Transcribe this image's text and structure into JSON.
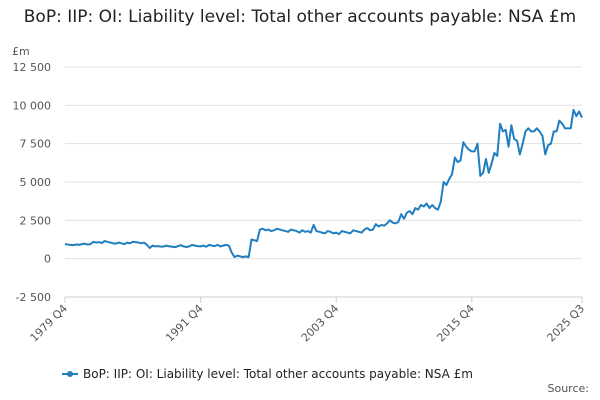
{
  "chart_data": {
    "type": "line",
    "title": "BoP: IIP: OI: Liability level: Total other accounts payable: NSA £m",
    "y_axis_label": "£m",
    "source": "Source:",
    "categories": [
      "1979 Q4",
      null,
      null,
      null,
      null,
      null,
      null,
      null,
      null,
      null,
      null,
      null,
      null,
      null,
      null,
      null,
      null,
      null,
      null,
      null,
      null,
      null,
      null,
      null,
      null,
      null,
      null,
      null,
      null,
      null,
      null,
      null,
      null,
      null,
      null,
      null,
      null,
      null,
      null,
      null,
      null,
      null,
      null,
      null,
      null,
      null,
      null,
      null,
      "1991 Q4",
      null,
      null,
      null,
      null,
      null,
      null,
      null,
      null,
      null,
      null,
      null,
      null,
      null,
      null,
      null,
      null,
      null,
      null,
      null,
      null,
      null,
      null,
      null,
      null,
      null,
      null,
      null,
      null,
      null,
      null,
      null,
      null,
      null,
      null,
      null,
      null,
      null,
      null,
      null,
      null,
      null,
      null,
      null,
      null,
      null,
      null,
      null,
      "2003 Q4",
      null,
      null,
      null,
      null,
      null,
      null,
      null,
      null,
      null,
      null,
      null,
      null,
      null,
      null,
      null,
      null,
      null,
      null,
      null,
      null,
      null,
      null,
      null,
      null,
      null,
      null,
      null,
      null,
      null,
      null,
      null,
      null,
      null,
      null,
      null,
      null,
      null,
      null,
      null,
      null,
      null,
      null,
      null,
      null,
      null,
      null,
      null,
      "2015 Q4",
      null,
      null,
      null,
      null,
      null,
      null,
      null,
      null,
      null,
      null,
      null,
      null,
      null,
      null,
      null,
      null,
      null,
      null,
      null,
      null,
      null,
      null,
      null,
      null,
      null,
      null,
      null,
      null,
      null,
      null,
      null,
      null,
      null,
      null,
      null,
      null,
      null,
      null,
      "2025 Q3"
    ],
    "series": [
      {
        "name": "BoP: IIP: OI: Liability level: Total other accounts payable: NSA £m",
        "color": "#1f7fc0",
        "values": [
          950,
          920,
          900,
          880,
          930,
          900,
          950,
          980,
          920,
          950,
          1100,
          1050,
          1080,
          1020,
          1150,
          1100,
          1050,
          1000,
          980,
          1050,
          1000,
          950,
          1050,
          1000,
          1100,
          1080,
          1050,
          1000,
          1050,
          900,
          700,
          850,
          800,
          820,
          780,
          800,
          850,
          800,
          780,
          750,
          820,
          880,
          800,
          760,
          800,
          900,
          850,
          820,
          800,
          850,
          780,
          900,
          850,
          820,
          900,
          800,
          850,
          900,
          850,
          400,
          100,
          200,
          150,
          100,
          150,
          100,
          1250,
          1200,
          1150,
          1900,
          1950,
          1850,
          1900,
          1800,
          1850,
          1950,
          1900,
          1850,
          1800,
          1750,
          1900,
          1850,
          1800,
          1700,
          1850,
          1750,
          1800,
          1700,
          2200,
          1800,
          1750,
          1700,
          1650,
          1800,
          1750,
          1650,
          1700,
          1600,
          1800,
          1750,
          1700,
          1650,
          1850,
          1800,
          1750,
          1700,
          1900,
          2000,
          1850,
          1900,
          2250,
          2100,
          2200,
          2150,
          2300,
          2500,
          2350,
          2300,
          2400,
          2900,
          2600,
          3000,
          3100,
          2900,
          3300,
          3200,
          3500,
          3400,
          3600,
          3300,
          3500,
          3300,
          3200,
          3700,
          5000,
          4800,
          5200,
          5500,
          6600,
          6300,
          6400,
          7600,
          7300,
          7100,
          7000,
          7000,
          7500,
          5400,
          5600,
          6500,
          5600,
          6200,
          6900,
          6700,
          8800,
          8300,
          8400,
          7300,
          8700,
          7800,
          7700,
          6800,
          7500,
          8300,
          8500,
          8300,
          8300,
          8500,
          8300,
          8000,
          6800,
          7400,
          7500,
          8300,
          8300,
          9000,
          8800,
          8500,
          8500,
          8500,
          9700,
          9300,
          9600,
          9200
        ]
      }
    ],
    "ylim": [
      -2500,
      12500
    ],
    "yticks": [
      {
        "value": -2500,
        "label": "-2 500"
      },
      0,
      {
        "value": 2500,
        "label": "2 500"
      },
      {
        "value": 5000,
        "label": "5 000"
      },
      {
        "value": 7500,
        "label": "7 500"
      },
      {
        "value": 10000,
        "label": "10 000"
      },
      {
        "value": 12500,
        "label": "12 500"
      }
    ],
    "grid": true
  }
}
